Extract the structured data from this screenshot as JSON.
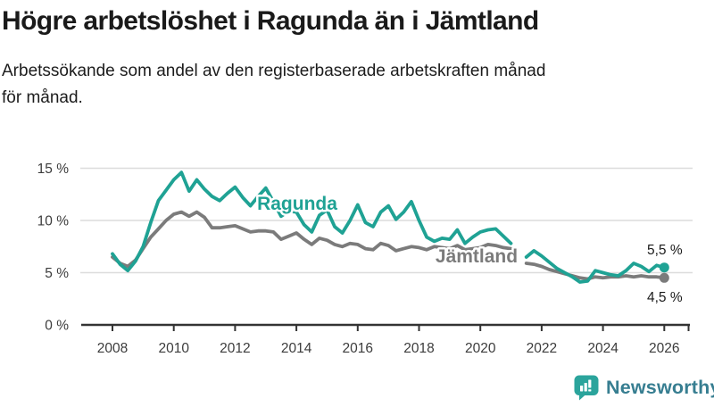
{
  "header": {
    "title": "Högre arbetslöshet i Ragunda än i Jämtland",
    "subtitle_line1": "Arbetssökande som andel av den registerbaserade arbetskraften månad",
    "subtitle_line2": "för månad."
  },
  "colors": {
    "accent_teal": "#1FA294",
    "line_gray": "#7B7B7B",
    "title_text": "#1A1A1A",
    "axis": "#333333",
    "axis_text": "#3C3C3C",
    "grid": "#DCDCDC",
    "value_label": "#1A1A1A",
    "logo_teal": "#2BA49C",
    "logo_text": "#377E91"
  },
  "logo": {
    "text": "Newsworthy"
  },
  "chart_data": {
    "type": "line",
    "unit": "%",
    "grid": true,
    "legend": "inline-labels",
    "ylim": [
      0,
      16.5
    ],
    "xlim": [
      2008,
      2026.8
    ],
    "yticks": [
      {
        "value": 0,
        "label": "0 %"
      },
      {
        "value": 5,
        "label": "5 %"
      },
      {
        "value": 10,
        "label": "10 %"
      },
      {
        "value": 15,
        "label": "15 %"
      }
    ],
    "xticks": [
      {
        "value": 2008,
        "label": "2008"
      },
      {
        "value": 2010,
        "label": "2010"
      },
      {
        "value": 2012,
        "label": "2012"
      },
      {
        "value": 2014,
        "label": "2014"
      },
      {
        "value": 2016,
        "label": "2016"
      },
      {
        "value": 2018,
        "label": "2018"
      },
      {
        "value": 2020,
        "label": "2020"
      },
      {
        "value": 2022,
        "label": "2022"
      },
      {
        "value": 2024,
        "label": "2024"
      },
      {
        "value": 2026,
        "label": "2026"
      }
    ],
    "x": [
      2008,
      2008.25,
      2008.5,
      2008.75,
      2009,
      2009.25,
      2009.5,
      2009.75,
      2010,
      2010.25,
      2010.5,
      2010.75,
      2011,
      2011.25,
      2011.5,
      2011.75,
      2012,
      2012.25,
      2012.5,
      2012.75,
      2013,
      2013.25,
      2013.5,
      2013.75,
      2014,
      2014.25,
      2014.5,
      2014.75,
      2015,
      2015.25,
      2015.5,
      2015.75,
      2016,
      2016.25,
      2016.5,
      2016.75,
      2017,
      2017.25,
      2017.5,
      2017.75,
      2018,
      2018.25,
      2018.5,
      2018.75,
      2019,
      2019.25,
      2019.5,
      2019.75,
      2020,
      2020.25,
      2020.5,
      2020.75,
      2021,
      2021.25,
      2021.5,
      2021.75,
      2022,
      2022.25,
      2022.5,
      2022.75,
      2023,
      2023.25,
      2023.5,
      2023.75,
      2024,
      2024.25,
      2024.5,
      2024.75,
      2025,
      2025.25,
      2025.5,
      2025.75,
      2026
    ],
    "series": [
      {
        "name": "Ragunda",
        "key": "ragunda",
        "color": "#1FA294",
        "end_value": 5.5,
        "end_label": "5,5 %",
        "values": [
          6.8,
          5.8,
          5.2,
          6.1,
          7.5,
          9.8,
          11.9,
          12.9,
          13.9,
          14.6,
          12.8,
          13.9,
          13.0,
          12.3,
          11.9,
          12.6,
          13.2,
          12.2,
          11.4,
          12.3,
          13.1,
          11.8,
          10.4,
          10.9,
          10.8,
          9.6,
          8.9,
          10.5,
          11.0,
          9.4,
          8.8,
          10.0,
          11.5,
          9.8,
          9.4,
          10.8,
          11.4,
          10.1,
          10.8,
          11.8,
          10.0,
          8.4,
          8.0,
          8.3,
          8.2,
          9.1,
          7.8,
          8.4,
          8.9,
          9.1,
          9.2,
          8.5,
          7.8,
          null,
          6.5,
          7.1,
          6.6,
          6.0,
          5.4,
          5.0,
          4.6,
          4.1,
          4.2,
          5.2,
          5.0,
          4.8,
          4.7,
          5.2,
          5.9,
          5.6,
          5.1,
          5.7,
          5.5
        ]
      },
      {
        "name": "Jämtland",
        "key": "jamtland",
        "color": "#7B7B7B",
        "end_value": 4.5,
        "end_label": "4,5 %",
        "values": [
          6.5,
          5.9,
          5.6,
          6.2,
          7.3,
          8.4,
          9.2,
          10.0,
          10.6,
          10.8,
          10.4,
          10.8,
          10.3,
          9.3,
          9.3,
          9.4,
          9.5,
          9.2,
          8.9,
          9.0,
          9.0,
          8.9,
          8.2,
          8.5,
          8.8,
          8.2,
          7.7,
          8.3,
          8.1,
          7.7,
          7.5,
          7.8,
          7.7,
          7.3,
          7.2,
          7.8,
          7.6,
          7.1,
          7.3,
          7.5,
          7.4,
          7.2,
          7.5,
          7.4,
          7.3,
          7.6,
          7.2,
          7.3,
          7.4,
          7.7,
          7.6,
          7.4,
          7.3,
          null,
          5.9,
          5.8,
          5.6,
          5.3,
          5.1,
          4.9,
          4.7,
          4.5,
          4.4,
          4.6,
          4.5,
          4.6,
          4.6,
          4.7,
          4.6,
          4.7,
          4.6,
          4.6,
          4.5
        ]
      }
    ]
  }
}
